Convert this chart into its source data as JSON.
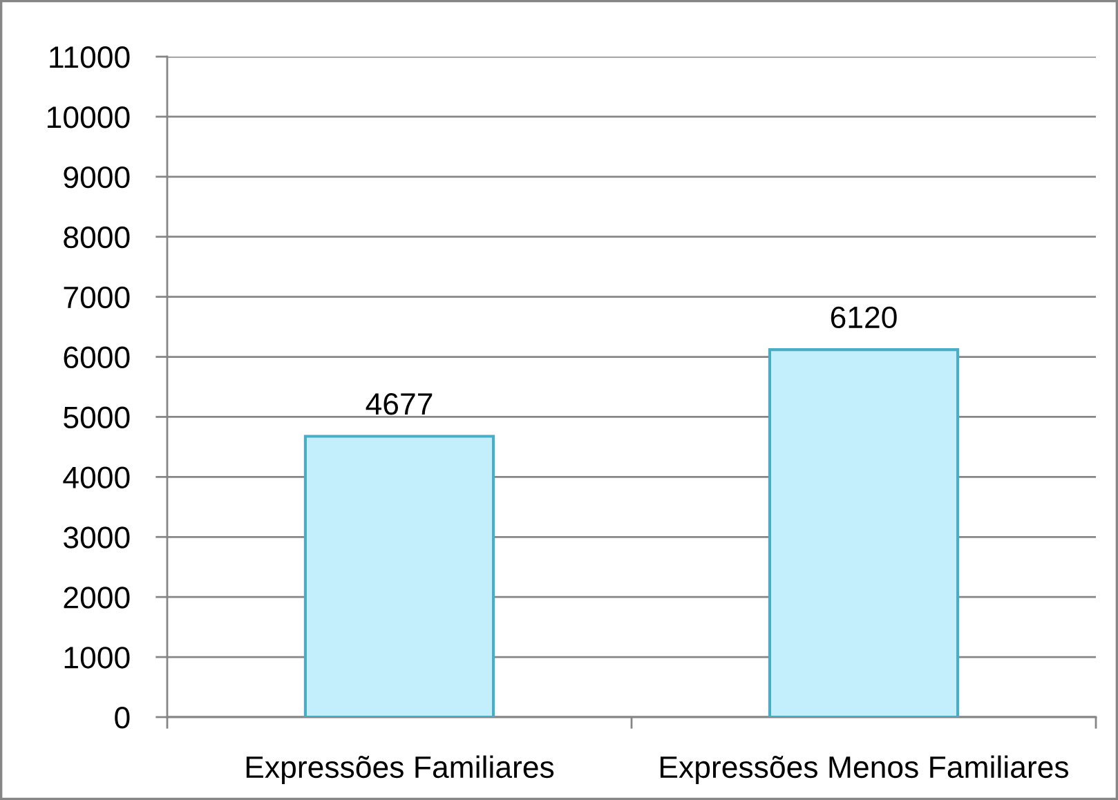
{
  "chart_data": {
    "type": "bar",
    "categories": [
      "Expressões Familiares",
      "Expressões Menos Familiares"
    ],
    "values": [
      4677,
      6120
    ],
    "color": "#c3effc",
    "ylim": [
      0,
      11000
    ],
    "yticks": [
      0,
      1000,
      2000,
      3000,
      4000,
      5000,
      6000,
      7000,
      8000,
      9000,
      10000,
      11000
    ],
    "grid": "y",
    "data_labels": true
  }
}
